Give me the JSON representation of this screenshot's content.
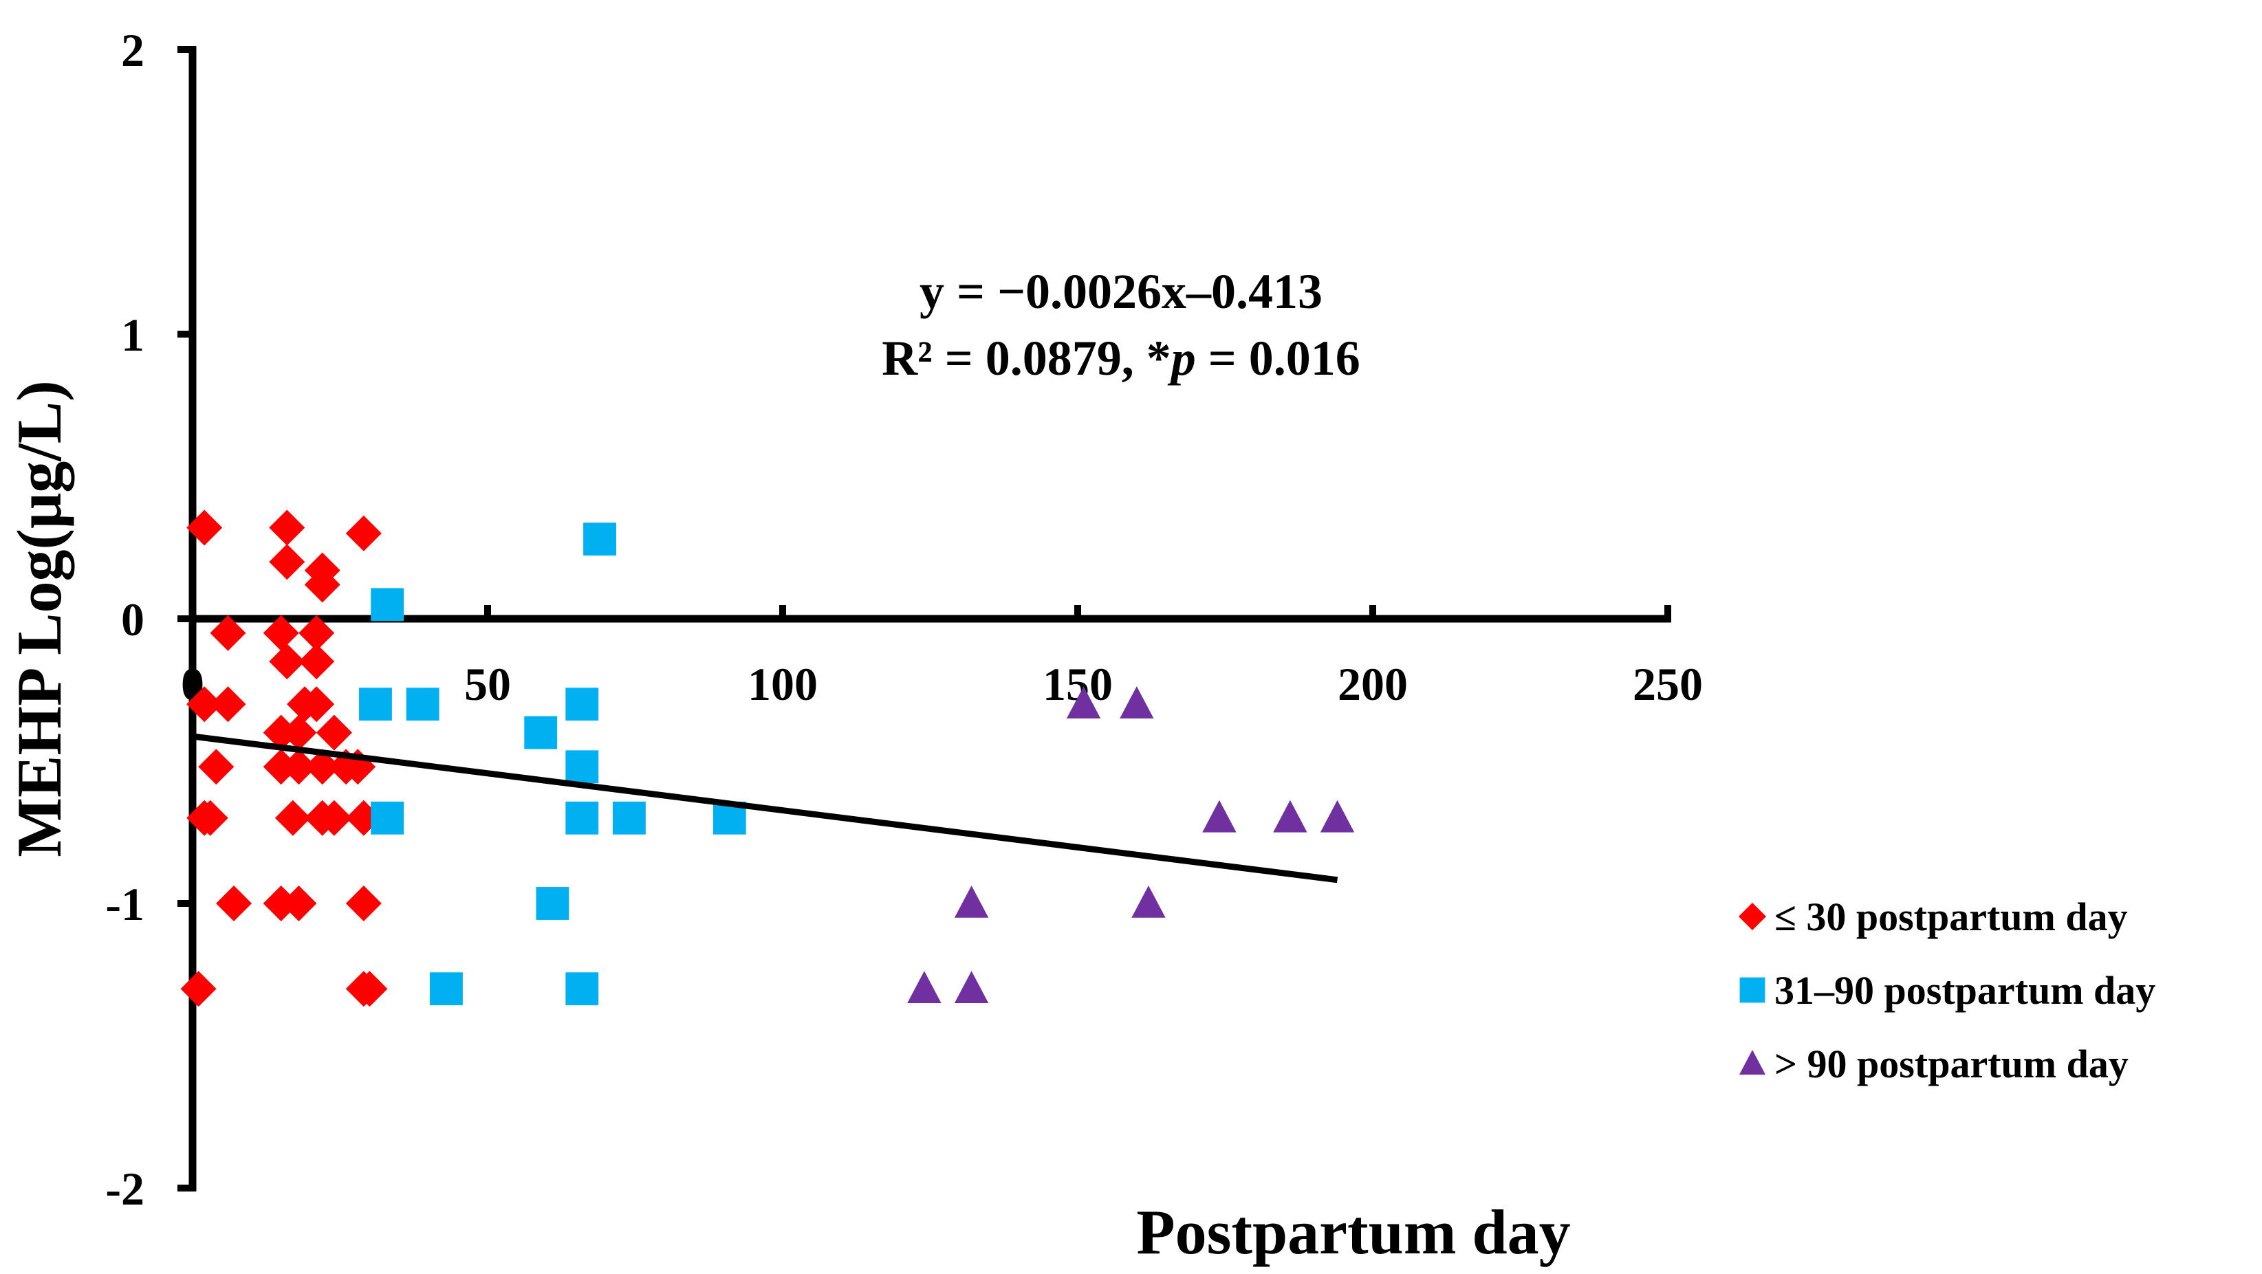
{
  "chart_data": {
    "type": "scatter",
    "title": "",
    "xlabel": "Postpartum day",
    "ylabel": "MEHP Log(μg/L)",
    "xlim": [
      0,
      250
    ],
    "ylim": [
      -2,
      2
    ],
    "x_ticks": [
      "0",
      "50",
      "100",
      "150",
      "200",
      "250"
    ],
    "y_ticks": [
      "2",
      "1",
      "0",
      "-1",
      "-2"
    ],
    "annotation": {
      "line1": "y = −0.0026x–0.413",
      "line2_prefix": "R² = 0.0879, *",
      "line2_italic": "p",
      "line2_suffix": " = 0.016"
    },
    "trendline": {
      "slope": -0.0026,
      "intercept": -0.413,
      "x_start": 0,
      "x_end": 194
    },
    "series": [
      {
        "name": "≤ 30 postpartum day",
        "marker": "diamond",
        "color": "#ff0000",
        "points": [
          [
            2,
            0.32
          ],
          [
            16,
            0.32
          ],
          [
            29,
            0.3
          ],
          [
            16,
            0.2
          ],
          [
            22,
            0.17
          ],
          [
            22,
            0.12
          ],
          [
            6,
            -0.05
          ],
          [
            15,
            -0.05
          ],
          [
            21,
            -0.05
          ],
          [
            16,
            -0.15
          ],
          [
            21,
            -0.15
          ],
          [
            2,
            -0.3
          ],
          [
            6,
            -0.3
          ],
          [
            19,
            -0.3
          ],
          [
            21,
            -0.3
          ],
          [
            15,
            -0.4
          ],
          [
            18,
            -0.4
          ],
          [
            24,
            -0.4
          ],
          [
            4,
            -0.52
          ],
          [
            15,
            -0.52
          ],
          [
            18,
            -0.52
          ],
          [
            22,
            -0.52
          ],
          [
            26,
            -0.52
          ],
          [
            28,
            -0.52
          ],
          [
            2,
            -0.7
          ],
          [
            3,
            -0.7
          ],
          [
            17,
            -0.7
          ],
          [
            22,
            -0.7
          ],
          [
            24,
            -0.7
          ],
          [
            29,
            -0.7
          ],
          [
            7,
            -1.0
          ],
          [
            15,
            -1.0
          ],
          [
            18,
            -1.0
          ],
          [
            29,
            -1.0
          ],
          [
            1,
            -1.3
          ],
          [
            29,
            -1.3
          ],
          [
            30,
            -1.3
          ]
        ]
      },
      {
        "name": "31–90 postpartum day",
        "marker": "square",
        "color": "#00b0f0",
        "points": [
          [
            33,
            0.05
          ],
          [
            69,
            0.28
          ],
          [
            31,
            -0.3
          ],
          [
            39,
            -0.3
          ],
          [
            66,
            -0.3
          ],
          [
            59,
            -0.4
          ],
          [
            66,
            -0.52
          ],
          [
            33,
            -0.7
          ],
          [
            66,
            -0.7
          ],
          [
            74,
            -0.7
          ],
          [
            91,
            -0.7
          ],
          [
            61,
            -1.0
          ],
          [
            43,
            -1.3
          ],
          [
            66,
            -1.3
          ]
        ]
      },
      {
        "name": "> 90 postpartum day",
        "marker": "triangle",
        "color": "#7030a0",
        "points": [
          [
            151,
            -0.3
          ],
          [
            160,
            -0.3
          ],
          [
            174,
            -0.7
          ],
          [
            186,
            -0.7
          ],
          [
            194,
            -0.7
          ],
          [
            132,
            -1.0
          ],
          [
            162,
            -1.0
          ],
          [
            124,
            -1.3
          ],
          [
            132,
            -1.3
          ]
        ]
      }
    ]
  }
}
